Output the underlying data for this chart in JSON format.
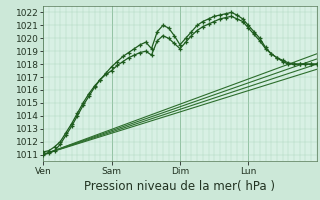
{
  "background_color": "#cce8d8",
  "plot_bg_color": "#d8f0e4",
  "grid_color_major": "#88bb99",
  "grid_color_minor": "#aad4bb",
  "ylim": [
    1010.5,
    1022.5
  ],
  "yticks": [
    1011,
    1012,
    1013,
    1014,
    1015,
    1016,
    1017,
    1018,
    1019,
    1020,
    1021,
    1022
  ],
  "xlabel": "Pression niveau de la mer( hPa )",
  "xlabel_fontsize": 8.5,
  "tick_fontsize": 6.5,
  "day_labels": [
    "Ven",
    "Sam",
    "Dim",
    "Lun"
  ],
  "day_positions": [
    0,
    72,
    144,
    216
  ],
  "total_hours": 288,
  "line_color_marker": "#1e5c1e",
  "line_color_thin": "#2d6e2d",
  "series_marker": [
    [
      0,
      1011.0,
      6,
      1011.1,
      12,
      1011.3,
      18,
      1011.8,
      24,
      1012.5,
      30,
      1013.2,
      36,
      1014.0,
      42,
      1014.8,
      48,
      1015.5,
      54,
      1016.2,
      60,
      1016.8,
      66,
      1017.3,
      72,
      1017.8,
      78,
      1018.2,
      84,
      1018.6,
      90,
      1018.9,
      96,
      1019.2,
      102,
      1019.5,
      108,
      1019.7,
      114,
      1019.2,
      120,
      1020.5,
      126,
      1021.0,
      132,
      1020.8,
      138,
      1020.2,
      144,
      1019.5,
      150,
      1020.0,
      156,
      1020.5,
      162,
      1021.0,
      168,
      1021.3,
      174,
      1021.5,
      180,
      1021.7,
      186,
      1021.8,
      192,
      1021.9,
      198,
      1022.0,
      204,
      1021.8,
      210,
      1021.5,
      216,
      1021.0,
      222,
      1020.5,
      228,
      1020.0,
      234,
      1019.3,
      240,
      1018.8,
      246,
      1018.5,
      252,
      1018.2,
      258,
      1018.0,
      264,
      1018.0,
      270,
      1018.0,
      276,
      1018.0,
      282,
      1018.0,
      288,
      1018.0
    ],
    [
      0,
      1011.2,
      6,
      1011.3,
      12,
      1011.6,
      18,
      1012.0,
      24,
      1012.7,
      30,
      1013.4,
      36,
      1014.2,
      42,
      1015.0,
      48,
      1015.7,
      54,
      1016.3,
      60,
      1016.8,
      66,
      1017.2,
      72,
      1017.5,
      78,
      1017.9,
      84,
      1018.2,
      90,
      1018.5,
      96,
      1018.7,
      102,
      1018.9,
      108,
      1019.0,
      114,
      1018.7,
      120,
      1019.8,
      126,
      1020.2,
      132,
      1020.0,
      138,
      1019.6,
      144,
      1019.2,
      150,
      1019.7,
      156,
      1020.2,
      162,
      1020.6,
      168,
      1020.9,
      174,
      1021.1,
      180,
      1021.3,
      186,
      1021.5,
      192,
      1021.6,
      198,
      1021.7,
      204,
      1021.5,
      210,
      1021.3,
      216,
      1020.8,
      222,
      1020.3,
      228,
      1019.8,
      234,
      1019.2,
      240,
      1018.8,
      246,
      1018.5,
      252,
      1018.3,
      258,
      1018.1,
      264,
      1018.0,
      270,
      1018.0,
      276,
      1018.0,
      282,
      1018.0,
      288,
      1018.0
    ]
  ],
  "series_thin": [
    [
      0,
      1011.0,
      288,
      1018.8
    ],
    [
      0,
      1011.0,
      288,
      1018.4
    ],
    [
      0,
      1011.0,
      288,
      1018.0
    ],
    [
      0,
      1011.0,
      288,
      1017.6
    ]
  ]
}
